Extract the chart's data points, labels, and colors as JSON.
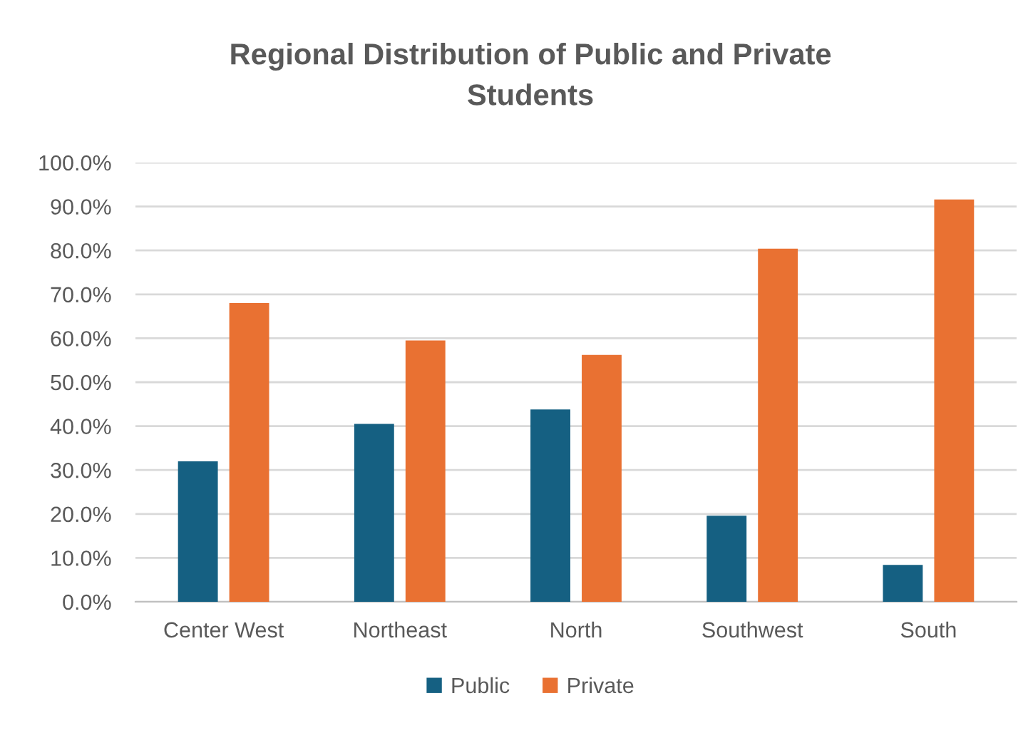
{
  "chart_data": {
    "type": "bar",
    "title": "Regional Distribution of Public and Private\nStudents",
    "categories": [
      "Center West",
      "Northeast",
      "North",
      "Southwest",
      "South"
    ],
    "series": [
      {
        "name": "Public",
        "color": "#156082",
        "values": [
          32.0,
          40.5,
          43.8,
          19.6,
          8.4
        ]
      },
      {
        "name": "Private",
        "color": "#e97132",
        "values": [
          68.0,
          59.5,
          56.2,
          80.4,
          91.6
        ]
      }
    ],
    "ylim": [
      0,
      100
    ],
    "yticks": [
      {
        "value": 0,
        "label": "0.0%"
      },
      {
        "value": 10,
        "label": "10.0%"
      },
      {
        "value": 20,
        "label": "20.0%"
      },
      {
        "value": 30,
        "label": "30.0%"
      },
      {
        "value": 40,
        "label": "40.0%"
      },
      {
        "value": 50,
        "label": "50.0%"
      },
      {
        "value": 60,
        "label": "60.0%"
      },
      {
        "value": 70,
        "label": "70.0%"
      },
      {
        "value": 80,
        "label": "80.0%"
      },
      {
        "value": 90,
        "label": "90.0%"
      },
      {
        "value": 100,
        "label": "100.0%"
      }
    ],
    "grid": "y",
    "legend": "bottom"
  }
}
